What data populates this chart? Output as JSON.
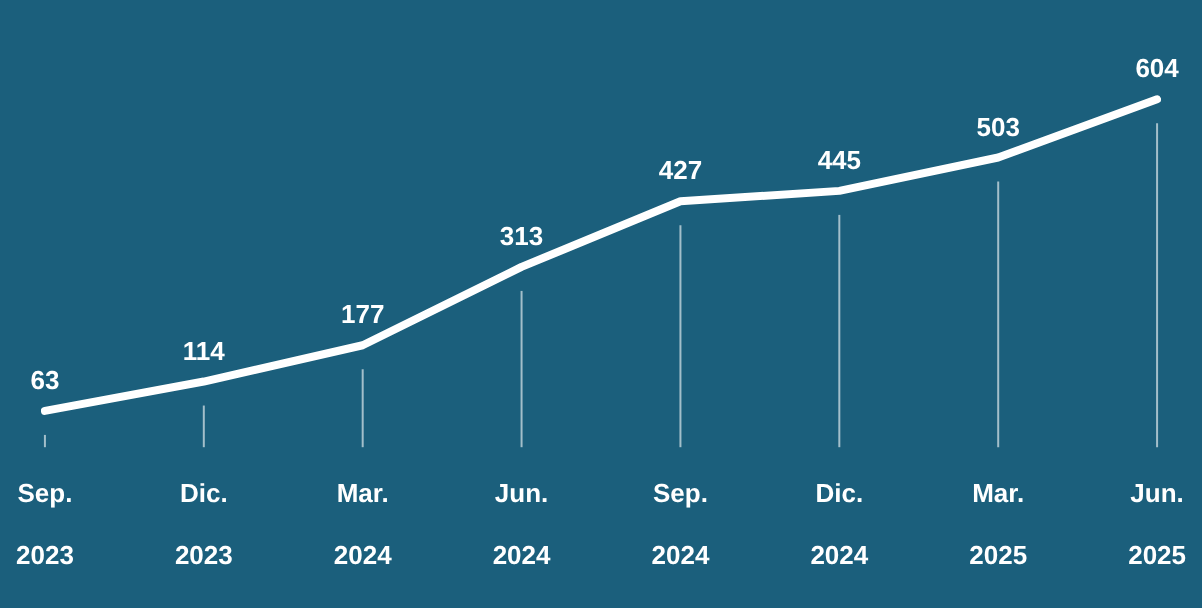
{
  "chart_data": {
    "type": "line",
    "categories": [
      "Sep. 2023",
      "Dic. 2023",
      "Mar. 2024",
      "Jun. 2024",
      "Sep. 2024",
      "Dic. 2024",
      "Mar. 2025",
      "Jun. 2025"
    ],
    "series": [
      {
        "color": "#ffffff",
        "values": [
          63,
          114,
          177,
          313,
          427,
          445,
          503,
          604
        ]
      }
    ],
    "data_labels": true,
    "marker": "none",
    "grid": "x"
  }
}
